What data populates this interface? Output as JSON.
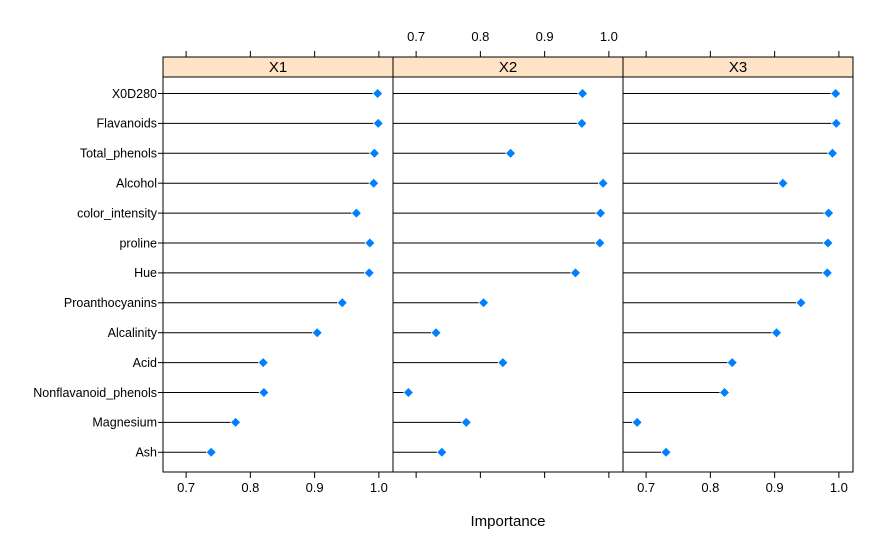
{
  "chart_data": {
    "type": "dotplot",
    "title": "",
    "xlabel": "Importance",
    "ylabel": "",
    "xticks": [
      0.7,
      0.8,
      0.9,
      1.0
    ],
    "xlim": [
      0.664,
      1.022
    ],
    "grid": false,
    "legend": "none",
    "categories": [
      "X0D280",
      "Flavanoids",
      "Total_phenols",
      "Alcohol",
      "color_intensity",
      "proline",
      "Hue",
      "Proanthocyanins",
      "Alcalinity",
      "Acid",
      "Nonflavanoid_phenols",
      "Magnesium",
      "Ash"
    ],
    "series": [
      {
        "name": "X1",
        "values": [
          0.998,
          0.999,
          0.993,
          0.992,
          0.965,
          0.986,
          0.985,
          0.943,
          0.904,
          0.82,
          0.821,
          0.777,
          0.739
        ]
      },
      {
        "name": "X2",
        "values": [
          0.959,
          0.958,
          0.847,
          0.991,
          0.987,
          0.986,
          0.948,
          0.805,
          0.731,
          0.835,
          0.688,
          0.778,
          0.74
        ]
      },
      {
        "name": "X3",
        "values": [
          0.995,
          0.996,
          0.99,
          0.913,
          0.984,
          0.983,
          0.982,
          0.941,
          0.903,
          0.834,
          0.822,
          0.686,
          0.731
        ]
      }
    ],
    "colors": {
      "point": "#0080ff",
      "strip_bg": "#ffe3c6",
      "line": "#000000",
      "panel_border": "#000000",
      "text": "#000000",
      "background": "#ffffff"
    },
    "layout": {
      "panels": 3,
      "top_axis_labeled_panels": [
        1
      ],
      "bottom_axis_labeled_panels": [
        0,
        2
      ],
      "ticks_on_top_and_bottom_of_all_panels": true,
      "y_ticks_left_of_first_panel": true
    }
  }
}
